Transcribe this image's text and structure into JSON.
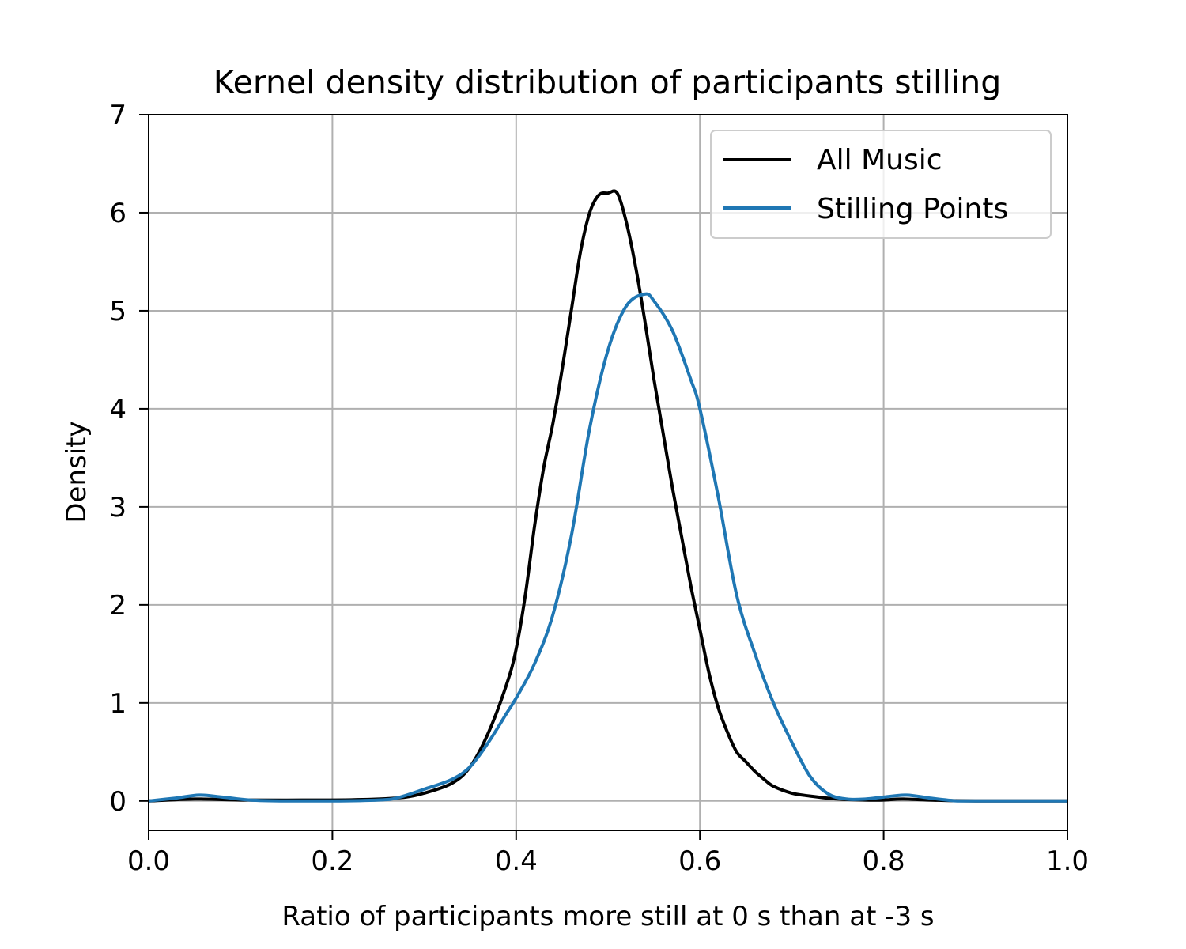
{
  "chart_data": {
    "type": "line",
    "title": "Kernel density distribution of participants stilling",
    "xlabel": "Ratio of participants more still at 0 s than at -3 s",
    "ylabel": "Density",
    "xlim": [
      0.0,
      1.0
    ],
    "ylim": [
      -0.3,
      7.0
    ],
    "xticks": [
      0.0,
      0.2,
      0.4,
      0.6,
      0.8,
      1.0
    ],
    "xtick_labels": [
      "0.0",
      "0.2",
      "0.4",
      "0.6",
      "0.8",
      "1.0"
    ],
    "yticks": [
      0,
      1,
      2,
      3,
      4,
      5,
      6,
      7
    ],
    "ytick_labels": [
      "0",
      "1",
      "2",
      "3",
      "4",
      "5",
      "6",
      "7"
    ],
    "grid": true,
    "legend_position": "top-right",
    "series": [
      {
        "name": "All Music",
        "color": "#000000",
        "x": [
          0.0,
          0.05,
          0.1,
          0.2,
          0.25,
          0.28,
          0.3,
          0.33,
          0.35,
          0.37,
          0.39,
          0.4,
          0.41,
          0.42,
          0.43,
          0.44,
          0.45,
          0.46,
          0.47,
          0.48,
          0.49,
          0.5,
          0.51,
          0.52,
          0.53,
          0.54,
          0.55,
          0.56,
          0.57,
          0.58,
          0.59,
          0.6,
          0.61,
          0.62,
          0.63,
          0.64,
          0.65,
          0.66,
          0.67,
          0.68,
          0.7,
          0.72,
          0.75,
          0.78,
          0.8,
          0.82,
          0.85,
          0.9,
          1.0
        ],
        "y": [
          0.0,
          0.02,
          0.01,
          0.01,
          0.02,
          0.04,
          0.08,
          0.18,
          0.35,
          0.7,
          1.2,
          1.55,
          2.1,
          2.8,
          3.4,
          3.85,
          4.4,
          5.0,
          5.6,
          6.0,
          6.18,
          6.2,
          6.2,
          5.9,
          5.45,
          4.9,
          4.3,
          3.75,
          3.2,
          2.7,
          2.2,
          1.75,
          1.3,
          0.95,
          0.7,
          0.5,
          0.4,
          0.3,
          0.22,
          0.15,
          0.08,
          0.05,
          0.02,
          0.01,
          0.01,
          0.02,
          0.01,
          0.0,
          0.0
        ]
      },
      {
        "name": "Stilling Points",
        "color": "#1f77b4",
        "x": [
          0.0,
          0.03,
          0.055,
          0.08,
          0.11,
          0.15,
          0.2,
          0.25,
          0.27,
          0.3,
          0.33,
          0.35,
          0.37,
          0.39,
          0.4,
          0.42,
          0.44,
          0.46,
          0.48,
          0.5,
          0.52,
          0.54,
          0.55,
          0.57,
          0.59,
          0.6,
          0.62,
          0.64,
          0.66,
          0.68,
          0.7,
          0.72,
          0.74,
          0.76,
          0.78,
          0.8,
          0.825,
          0.85,
          0.88,
          0.9,
          1.0
        ],
        "y": [
          0.0,
          0.03,
          0.06,
          0.04,
          0.01,
          0.0,
          0.0,
          0.01,
          0.03,
          0.12,
          0.22,
          0.35,
          0.6,
          0.9,
          1.05,
          1.4,
          1.9,
          2.7,
          3.8,
          4.6,
          5.05,
          5.17,
          5.1,
          4.8,
          4.3,
          4.0,
          3.1,
          2.1,
          1.5,
          1.0,
          0.6,
          0.25,
          0.07,
          0.02,
          0.02,
          0.04,
          0.06,
          0.03,
          0.0,
          0.0,
          0.0
        ]
      }
    ]
  }
}
